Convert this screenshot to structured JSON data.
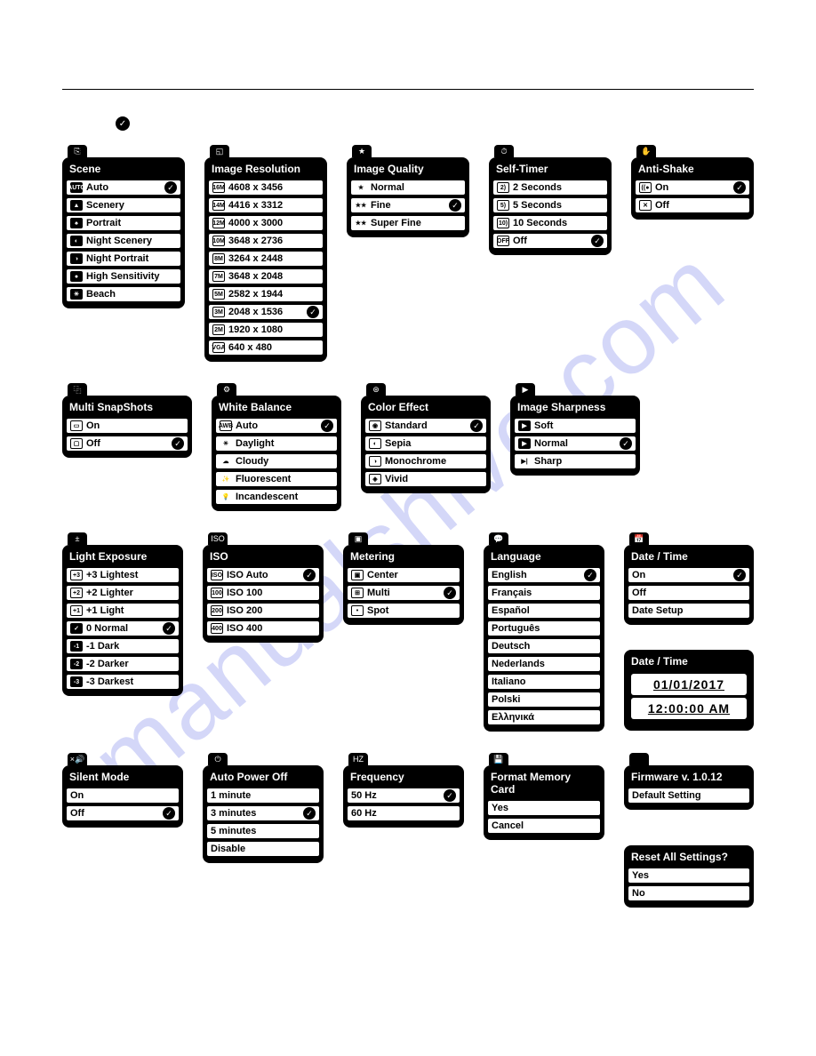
{
  "watermark": "manualshive.com",
  "panels": {
    "scene": {
      "title": "Scene",
      "tab": "⎘",
      "items": [
        {
          "ico": "AUTO",
          "cls": "inv",
          "label": "Auto",
          "sel": true
        },
        {
          "ico": "▲",
          "cls": "inv",
          "label": "Scenery"
        },
        {
          "ico": "♠",
          "cls": "inv",
          "label": "Portrait"
        },
        {
          "ico": "◐",
          "cls": "inv",
          "label": "Night Scenery"
        },
        {
          "ico": "◑",
          "cls": "inv",
          "label": "Night Portrait"
        },
        {
          "ico": "●",
          "cls": "inv",
          "label": "High Sensitivity"
        },
        {
          "ico": "☀",
          "cls": "inv",
          "label": "Beach"
        }
      ]
    },
    "resolution": {
      "title": "Image Resolution",
      "tab": "◱",
      "items": [
        {
          "ico": "16M",
          "label": "4608 x 3456"
        },
        {
          "ico": "14M",
          "label": "4416 x 3312"
        },
        {
          "ico": "12M",
          "label": "4000 x 3000"
        },
        {
          "ico": "10M",
          "label": "3648 x 2736"
        },
        {
          "ico": "8M",
          "label": "3264 x 2448"
        },
        {
          "ico": "7M",
          "label": "3648 x 2048"
        },
        {
          "ico": "5M",
          "label": "2582 x 1944"
        },
        {
          "ico": "3M",
          "label": "2048 x 1536",
          "sel": true
        },
        {
          "ico": "2M",
          "label": "1920 x 1080"
        },
        {
          "ico": "VGA",
          "label": "640 x 480"
        }
      ]
    },
    "quality": {
      "title": "Image Quality",
      "tab": "★",
      "items": [
        {
          "ico": "★",
          "cls": "noborder",
          "label": "Normal"
        },
        {
          "ico": "★★",
          "cls": "noborder",
          "label": "Fine",
          "sel": true
        },
        {
          "ico": "★★",
          "cls": "noborder",
          "label": "Super Fine"
        }
      ]
    },
    "selftimer": {
      "title": "Self-Timer",
      "tab": "⏱",
      "items": [
        {
          "ico": "2)",
          "label": "2 Seconds"
        },
        {
          "ico": "5)",
          "label": "5 Seconds"
        },
        {
          "ico": "10)",
          "label": "10 Seconds"
        },
        {
          "ico": "OFF",
          "label": "Off",
          "sel": true
        }
      ]
    },
    "antishake": {
      "title": "Anti-Shake",
      "tab": "✋",
      "items": [
        {
          "ico": "((●",
          "label": "On",
          "sel": true
        },
        {
          "ico": "✕",
          "label": "Off"
        }
      ]
    },
    "multisnap": {
      "title": "Multi SnapShots",
      "tab": "⿻",
      "items": [
        {
          "ico": "▭",
          "label": "On"
        },
        {
          "ico": "▢",
          "label": "Off",
          "sel": true
        }
      ]
    },
    "whitebalance": {
      "title": "White Balance",
      "tab": "⚙",
      "items": [
        {
          "ico": "AWB",
          "label": "Auto",
          "sel": true
        },
        {
          "ico": "☀",
          "cls": "noborder",
          "label": "Daylight"
        },
        {
          "ico": "☁",
          "cls": "noborder",
          "label": "Cloudy"
        },
        {
          "ico": "✨",
          "cls": "noborder",
          "label": "Fluorescent"
        },
        {
          "ico": "💡",
          "cls": "noborder",
          "label": "Incandescent"
        }
      ]
    },
    "coloreffect": {
      "title": "Color Effect",
      "tab": "⊛",
      "items": [
        {
          "ico": "◉",
          "label": "Standard",
          "sel": true
        },
        {
          "ico": "◐",
          "label": "Sepia"
        },
        {
          "ico": "◑",
          "label": "Monochrome"
        },
        {
          "ico": "◈",
          "label": "Vivid"
        }
      ]
    },
    "sharpness": {
      "title": "Image Sharpness",
      "tab": "▶",
      "items": [
        {
          "ico": "▶",
          "cls": "inv",
          "label": "Soft"
        },
        {
          "ico": "▶",
          "cls": "inv",
          "label": "Normal",
          "sel": true
        },
        {
          "ico": "▶|",
          "cls": "noborder",
          "label": "Sharp"
        }
      ]
    },
    "exposure": {
      "title": "Light Exposure",
      "tab": "±",
      "items": [
        {
          "ico": "+3",
          "label": "+3 Lightest"
        },
        {
          "ico": "+2",
          "label": "+2 Lighter"
        },
        {
          "ico": "+1",
          "label": "+1 Light"
        },
        {
          "ico": "✓",
          "cls": "inv",
          "label": "0 Normal",
          "sel": true
        },
        {
          "ico": "-1",
          "cls": "inv",
          "label": "-1 Dark"
        },
        {
          "ico": "-2",
          "cls": "inv",
          "label": "-2 Darker"
        },
        {
          "ico": "-3",
          "cls": "inv",
          "label": "-3 Darkest"
        }
      ]
    },
    "iso": {
      "title": "ISO",
      "tab": "ISO",
      "items": [
        {
          "ico": "ISO",
          "label": "ISO Auto",
          "sel": true
        },
        {
          "ico": "100",
          "label": "ISO 100"
        },
        {
          "ico": "200",
          "label": "ISO 200"
        },
        {
          "ico": "400",
          "label": "ISO 400"
        }
      ]
    },
    "metering": {
      "title": "Metering",
      "tab": "▣",
      "items": [
        {
          "ico": "▣",
          "label": "Center"
        },
        {
          "ico": "⊞",
          "label": "Multi",
          "sel": true
        },
        {
          "ico": "•",
          "label": "Spot"
        }
      ]
    },
    "language": {
      "title": "Language",
      "tab": "💬",
      "items": [
        {
          "label": "English",
          "sel": true
        },
        {
          "label": "Français"
        },
        {
          "label": "Español"
        },
        {
          "label": "Português"
        },
        {
          "label": "Deutsch"
        },
        {
          "label": "Nederlands"
        },
        {
          "label": "Italiano"
        },
        {
          "label": "Polski"
        },
        {
          "label": "Ελληνικά"
        }
      ]
    },
    "datetime": {
      "title": "Date / Time",
      "tab": "📅",
      "items": [
        {
          "label": "On",
          "sel": true
        },
        {
          "label": "Off"
        },
        {
          "label": "Date Setup"
        }
      ]
    },
    "datetime_display": {
      "title": "Date / Time",
      "date": "01/01/2017",
      "time": "12:00:00 AM"
    },
    "silent": {
      "title": "Silent Mode",
      "tab": "×🔊",
      "items": [
        {
          "label": "On"
        },
        {
          "label": "Off",
          "sel": true
        }
      ]
    },
    "autopower": {
      "title": "Auto Power Off",
      "tab": "⏻",
      "items": [
        {
          "label": "1 minute"
        },
        {
          "label": "3 minutes",
          "sel": true
        },
        {
          "label": "5 minutes"
        },
        {
          "label": "Disable"
        }
      ]
    },
    "frequency": {
      "title": "Frequency",
      "tab": "HZ",
      "items": [
        {
          "label": "50 Hz",
          "sel": true
        },
        {
          "label": "60 Hz"
        }
      ]
    },
    "format": {
      "title": "Format Memory Card",
      "tab": "💾",
      "items": [
        {
          "label": "Yes"
        },
        {
          "label": "Cancel"
        }
      ]
    },
    "firmware": {
      "title": "Firmware v. 1.0.12",
      "tab": "",
      "items": [
        {
          "label": "Default Setting"
        }
      ]
    },
    "reset": {
      "title": "Reset All Settings?",
      "items": [
        {
          "label": "Yes"
        },
        {
          "label": "No"
        }
      ]
    }
  }
}
